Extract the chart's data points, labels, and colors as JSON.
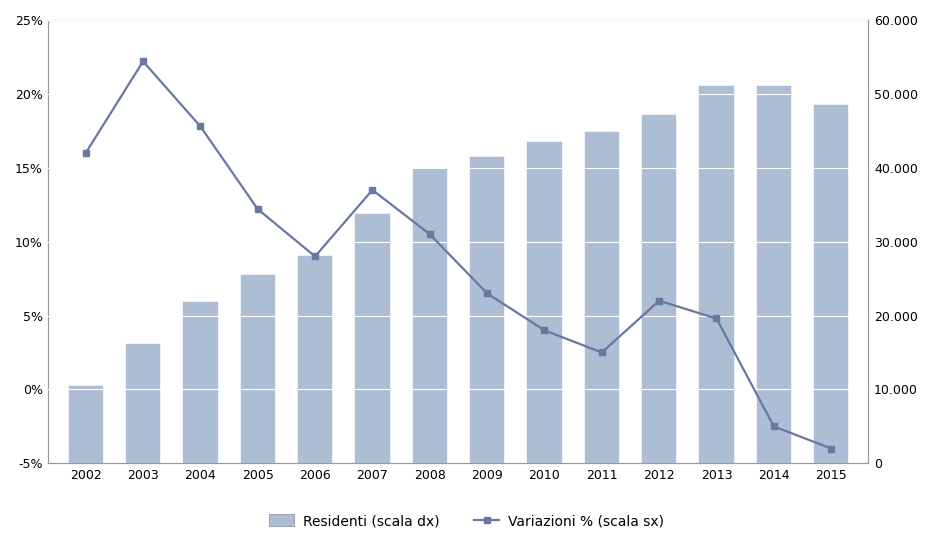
{
  "years": [
    2002,
    2003,
    2004,
    2005,
    2006,
    2007,
    2008,
    2009,
    2010,
    2011,
    2012,
    2013,
    2014,
    2015
  ],
  "residents": [
    10500,
    16200,
    21800,
    25500,
    28000,
    33800,
    39800,
    41500,
    43500,
    44800,
    47200,
    51000,
    51000,
    48500
  ],
  "variazioni": [
    16.0,
    22.2,
    17.8,
    12.2,
    9.0,
    13.5,
    10.5,
    6.5,
    4.0,
    2.5,
    6.0,
    4.8,
    -2.5,
    -4.0
  ],
  "bar_color": "#adbdd4",
  "line_color": "#6878a0",
  "background_color": "#e0e0e0",
  "outer_background": "#ffffff",
  "left_ylim": [
    -5,
    25
  ],
  "right_ylim": [
    0,
    60000
  ],
  "left_yticks": [
    -5,
    0,
    5,
    10,
    15,
    20,
    25
  ],
  "right_yticks": [
    0,
    10000,
    20000,
    30000,
    40000,
    50000,
    60000
  ],
  "left_yticklabels": [
    "-5%",
    "0%",
    "5%",
    "10%",
    "15%",
    "20%",
    "25%"
  ],
  "right_yticklabels": [
    "0",
    "10.000",
    "20.000",
    "30.000",
    "40.000",
    "50.000",
    "60.000"
  ],
  "legend_bar_label": "Residenti (scala dx)",
  "legend_line_label": "Variazioni % (scala sx)",
  "figsize": [
    9.33,
    5.46
  ],
  "dpi": 100
}
